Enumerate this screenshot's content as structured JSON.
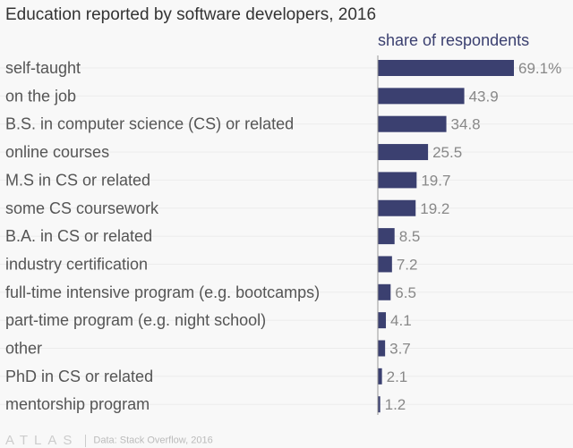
{
  "chart_data": {
    "type": "bar",
    "orientation": "horizontal",
    "title": "Education reported by software developers, 2016",
    "subtitle": "share of respondents",
    "unit": "%",
    "categories": [
      "self-taught",
      "on the job",
      "B.S. in computer science (CS) or related",
      "online courses",
      "M.S in CS or related",
      "some CS coursework",
      "B.A. in CS or related",
      "industry certification",
      "full-time intensive program (e.g. bootcamps)",
      "part-time program (e.g. night school)",
      "other",
      "PhD in CS or related",
      "mentorship program"
    ],
    "values": [
      69.1,
      43.9,
      34.8,
      25.5,
      19.7,
      19.2,
      8.5,
      7.2,
      6.5,
      4.1,
      3.7,
      2.1,
      1.2
    ],
    "value_labels": [
      "69.1%",
      "43.9",
      "34.8",
      "25.5",
      "19.7",
      "19.2",
      "8.5",
      "7.2",
      "6.5",
      "4.1",
      "3.7",
      "2.1",
      "1.2"
    ],
    "bar_color": "#3b4070",
    "grid": true
  },
  "footer": {
    "logo": "ATLAS",
    "source": "Data: Stack Overflow, 2016"
  }
}
